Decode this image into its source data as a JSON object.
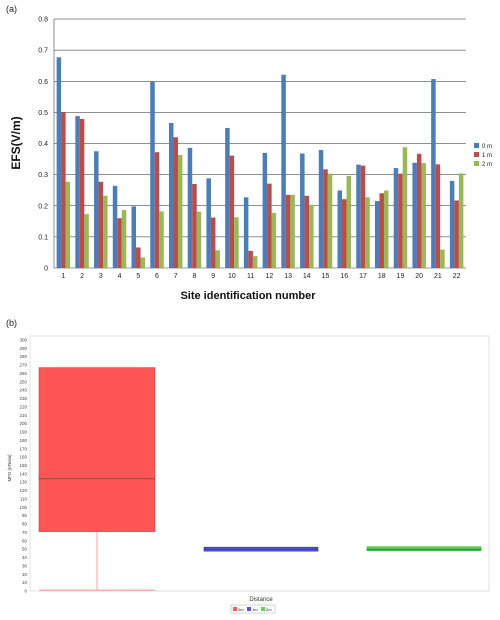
{
  "chart_data": [
    {
      "panel_label": "(a)",
      "type": "bar",
      "title": "",
      "xlabel": "Site identification number",
      "ylabel": "EFS(V/m)",
      "categories": [
        "1",
        "2",
        "3",
        "4",
        "5",
        "6",
        "7",
        "8",
        "9",
        "10",
        "11",
        "12",
        "13",
        "14",
        "15",
        "16",
        "17",
        "18",
        "19",
        "20",
        "21",
        "22"
      ],
      "series": [
        {
          "name": "0 m",
          "color": "#4a7ebb",
          "values": [
            0.677,
            0.488,
            0.375,
            0.264,
            0.198,
            0.598,
            0.466,
            0.386,
            0.288,
            0.45,
            0.227,
            0.37,
            0.621,
            0.368,
            0.379,
            0.249,
            0.332,
            0.215,
            0.321,
            0.338,
            0.607,
            0.28
          ]
        },
        {
          "name": "1 m",
          "color": "#be4b48",
          "values": [
            0.5,
            0.479,
            0.277,
            0.16,
            0.066,
            0.372,
            0.42,
            0.27,
            0.162,
            0.361,
            0.055,
            0.271,
            0.235,
            0.232,
            0.317,
            0.221,
            0.329,
            0.24,
            0.303,
            0.367,
            0.333,
            0.217
          ]
        },
        {
          "name": "2 m",
          "color": "#98b954",
          "values": [
            0.277,
            0.173,
            0.232,
            0.186,
            0.034,
            0.182,
            0.363,
            0.181,
            0.057,
            0.163,
            0.038,
            0.177,
            0.235,
            0.203,
            0.303,
            0.296,
            0.227,
            0.249,
            0.388,
            0.337,
            0.059,
            0.304
          ]
        }
      ],
      "ylim": [
        0,
        0.8
      ],
      "yticks": [
        "0",
        "0.1",
        "0.2",
        "0.3",
        "0.4",
        "0.5",
        "0.6",
        "0.7",
        "0.8"
      ],
      "grid": true,
      "legend": "right"
    },
    {
      "panel_label": "(b)",
      "type": "box",
      "title": "",
      "xlabel": "Distance",
      "ylabel": "MFD (nTesla)",
      "ylim": [
        0,
        300
      ],
      "yticks": [
        "0",
        "10",
        "20",
        "30",
        "40",
        "50",
        "60",
        "70",
        "80",
        "90",
        "100",
        "110",
        "120",
        "130",
        "140",
        "150",
        "160",
        "170",
        "180",
        "190",
        "200",
        "210",
        "220",
        "230",
        "240",
        "250",
        "260",
        "270",
        "280",
        "290",
        "300"
      ],
      "series": [
        {
          "name": "0m",
          "color": "#ff5555",
          "min": 1,
          "q1": 71,
          "median": 134,
          "q3": 267,
          "max": 267
        },
        {
          "name": "1m",
          "color": "#5555dd",
          "min": 49,
          "q1": 49,
          "median": 50,
          "q3": 51,
          "max": 51
        },
        {
          "name": "2m",
          "color": "#55dd55",
          "min": 49,
          "q1": 49,
          "median": 50,
          "q3": 52,
          "max": 52
        }
      ],
      "legend": "bottom"
    }
  ]
}
